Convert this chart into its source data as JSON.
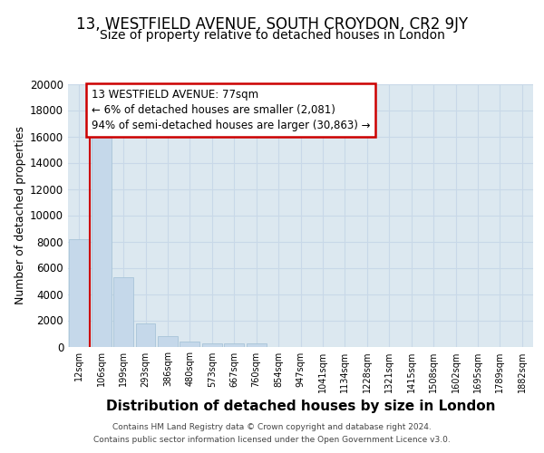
{
  "title1": "13, WESTFIELD AVENUE, SOUTH CROYDON, CR2 9JY",
  "title2": "Size of property relative to detached houses in London",
  "xlabel": "Distribution of detached houses by size in London",
  "ylabel": "Number of detached properties",
  "categories": [
    "12sqm",
    "106sqm",
    "199sqm",
    "293sqm",
    "386sqm",
    "480sqm",
    "573sqm",
    "667sqm",
    "760sqm",
    "854sqm",
    "947sqm",
    "1041sqm",
    "1134sqm",
    "1228sqm",
    "1321sqm",
    "1415sqm",
    "1508sqm",
    "1602sqm",
    "1695sqm",
    "1789sqm",
    "1882sqm"
  ],
  "values": [
    8200,
    16600,
    5300,
    1750,
    800,
    350,
    250,
    250,
    250,
    0,
    0,
    0,
    0,
    0,
    0,
    0,
    0,
    0,
    0,
    0,
    0
  ],
  "bar_color": "#c5d8ea",
  "bar_edge_color": "#a8c4d8",
  "annotation_title": "13 WESTFIELD AVENUE: 77sqm",
  "annotation_line1": "← 6% of detached houses are smaller (2,081)",
  "annotation_line2": "94% of semi-detached houses are larger (30,863) →",
  "annotation_box_facecolor": "#ffffff",
  "annotation_box_edgecolor": "#cc0000",
  "vline_color": "#cc0000",
  "vline_x": 0.5,
  "ylim": [
    0,
    20000
  ],
  "yticks": [
    0,
    2000,
    4000,
    6000,
    8000,
    10000,
    12000,
    14000,
    16000,
    18000,
    20000
  ],
  "bg_color": "#ffffff",
  "plot_bg_color": "#dce8f0",
  "title1_fontsize": 12,
  "title2_fontsize": 10,
  "xlabel_fontsize": 11,
  "ylabel_fontsize": 9,
  "footer1": "Contains HM Land Registry data © Crown copyright and database right 2024.",
  "footer2": "Contains public sector information licensed under the Open Government Licence v3.0.",
  "grid_color": "#c8d8e8"
}
